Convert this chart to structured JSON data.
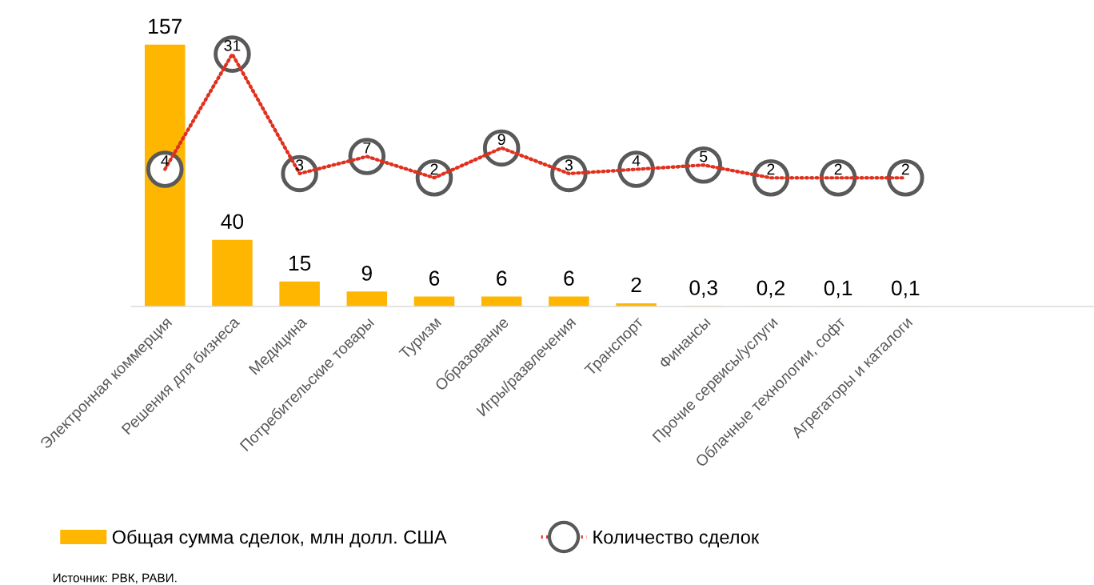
{
  "chart_data": {
    "type": "bar",
    "categories": [
      "Электронная коммерция",
      "Решения для бизнеса",
      "Медицина",
      "Потребительские товары",
      "Туризм",
      "Образование",
      "Игры/развлечения",
      "Транспорт",
      "Финансы",
      "Прочие сервисы/услуги",
      "Облачные технологии, софт",
      "Агрегаторы и каталоги"
    ],
    "series": [
      {
        "name": "Общая сумма сделок, млн долл. США",
        "color": "#ffb600",
        "values": [
          157,
          40,
          15,
          9,
          6,
          6,
          6,
          2,
          0.3,
          0.2,
          0.1,
          0.1
        ],
        "value_labels": [
          "157",
          "40",
          "15",
          "9",
          "6",
          "6",
          "6",
          "2",
          "0,3",
          "0,2",
          "0,1",
          "0,1"
        ]
      },
      {
        "name": "Количество сделок",
        "type": "line",
        "axis": "y2",
        "color": "#e0301e",
        "line_style": "dotted",
        "values": [
          4,
          31,
          3,
          7,
          2,
          9,
          3,
          4,
          5,
          2,
          2,
          2
        ]
      }
    ],
    "data_labels": true,
    "marker": "circle",
    "legend": "bottom",
    "grid": false,
    "tick_labels": "x",
    "annotations": [
      "Источник: РВК, РАВИ."
    ]
  }
}
